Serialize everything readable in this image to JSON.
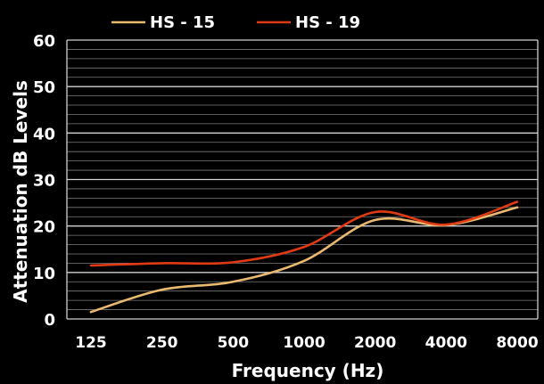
{
  "chart_data": {
    "type": "line",
    "title": "",
    "xlabel": "Frequency (Hz)",
    "ylabel": "Attenuation dB Levels",
    "categories": [
      "125",
      "250",
      "500",
      "1000",
      "2000",
      "4000",
      "8000"
    ],
    "ylim": [
      0,
      60
    ],
    "yticks": [
      "0",
      "10",
      "20",
      "30",
      "40",
      "50",
      "60"
    ],
    "grid": true,
    "legend_position": "top-left",
    "series": [
      {
        "name": "HS - 15",
        "color": "#e8b96f",
        "values": [
          1.5,
          6.3,
          8.0,
          12.5,
          21.3,
          20.2,
          24.0
        ]
      },
      {
        "name": "HS - 19",
        "color": "#e03a14",
        "values": [
          11.5,
          12.0,
          12.2,
          15.5,
          23.0,
          20.3,
          25.2
        ]
      }
    ]
  }
}
